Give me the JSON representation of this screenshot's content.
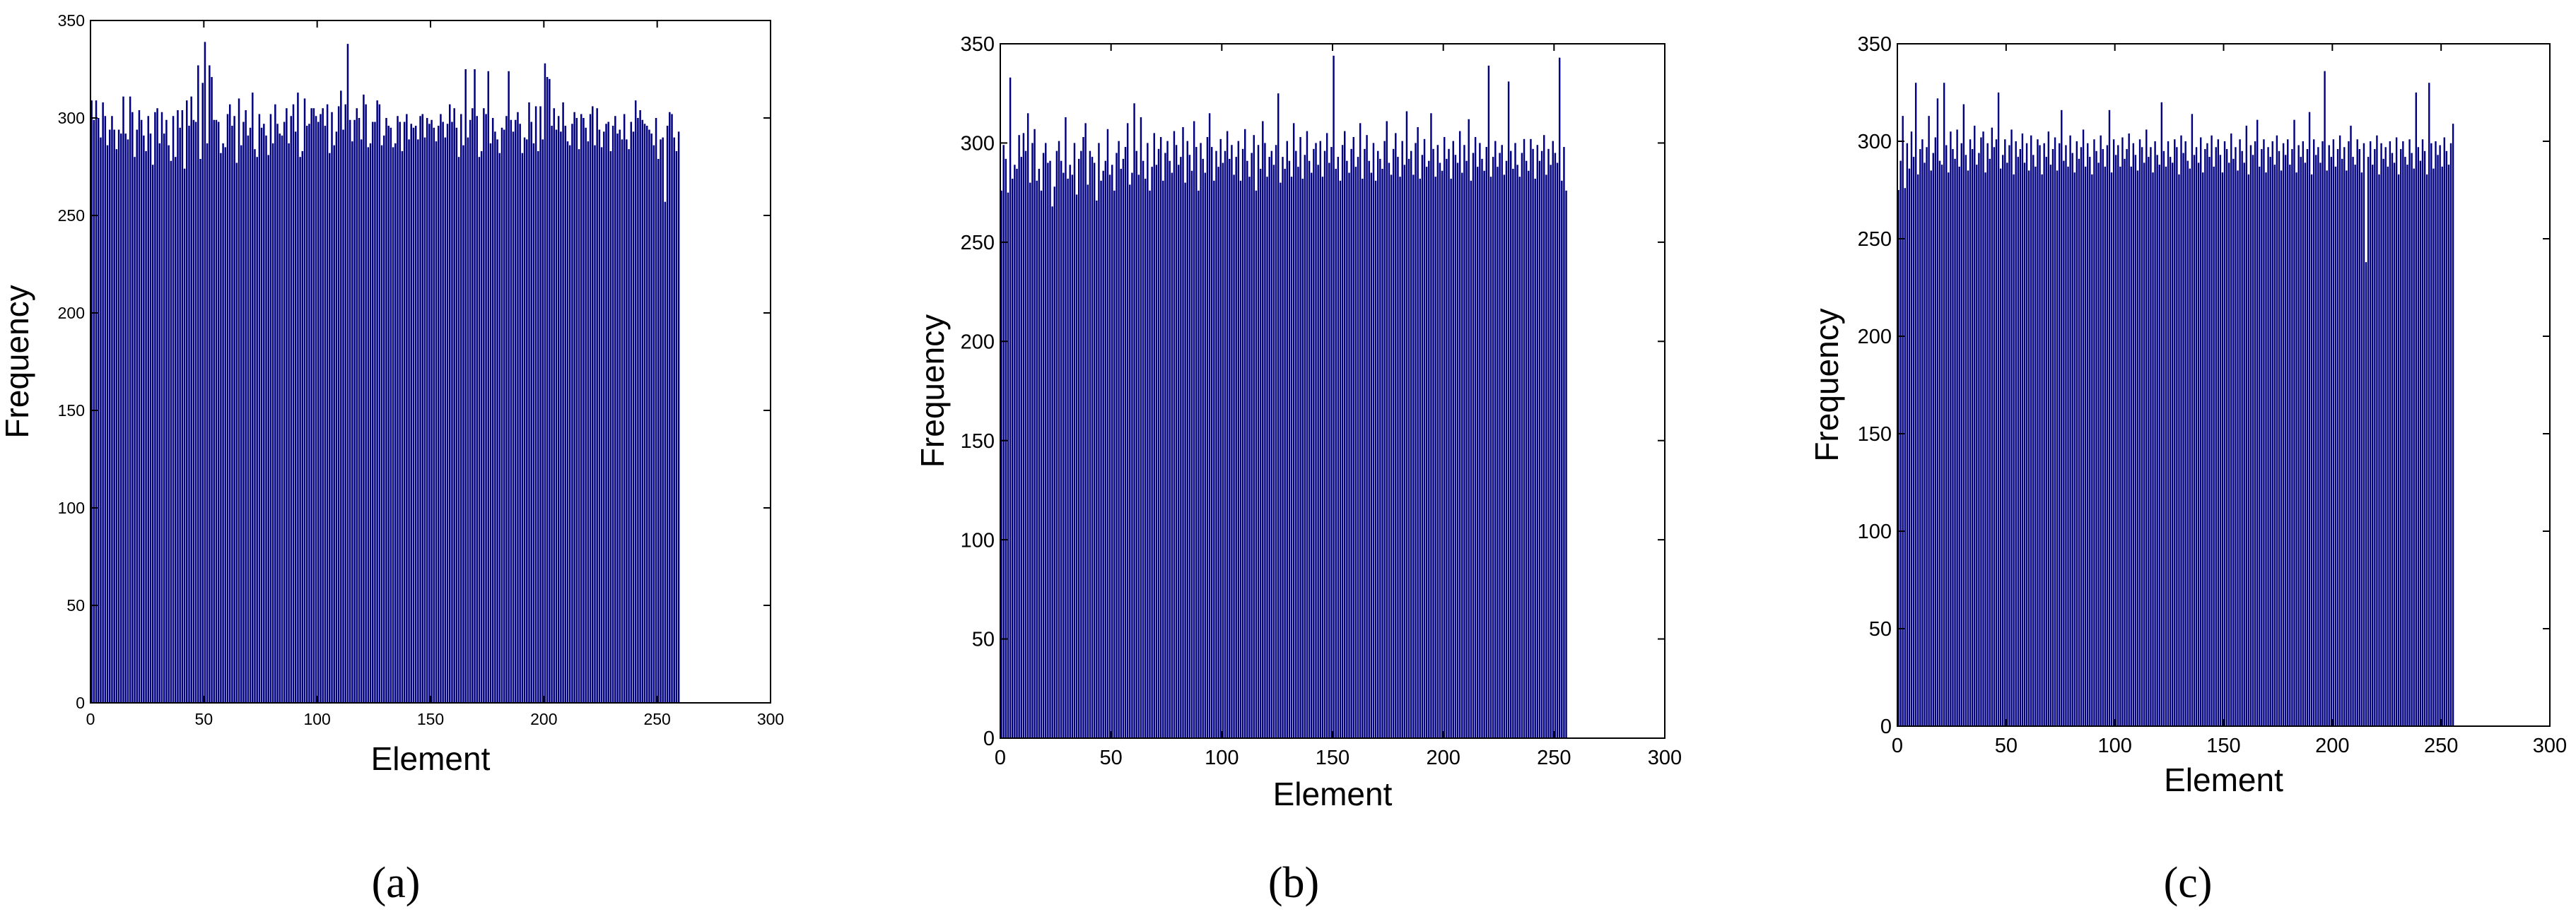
{
  "figure": {
    "panels": [
      {
        "caption": "(a)",
        "letter": "a"
      },
      {
        "caption": "(b)",
        "letter": "b"
      },
      {
        "caption": "(c)",
        "letter": "c"
      }
    ],
    "colors": {
      "bar": "#000080",
      "axis": "#000000",
      "background": "#ffffff"
    }
  },
  "chart_data": [
    {
      "type": "bar",
      "xlabel": "Element",
      "ylabel": "Frequency",
      "xlim": [
        0,
        300
      ],
      "ylim": [
        0,
        350
      ],
      "xticks": [
        0,
        50,
        100,
        150,
        200,
        250,
        300
      ],
      "yticks": [
        0,
        50,
        100,
        150,
        200,
        250,
        300,
        350
      ],
      "grid": false,
      "x_start": 0,
      "values": [
        309,
        299,
        309,
        300,
        290,
        308,
        301,
        286,
        294,
        301,
        294,
        284,
        294,
        292,
        311,
        292,
        289,
        311,
        303,
        280,
        294,
        304,
        299,
        291,
        283,
        301,
        292,
        276,
        303,
        305,
        287,
        303,
        292,
        299,
        286,
        278,
        301,
        280,
        304,
        295,
        304,
        274,
        309,
        296,
        311,
        299,
        298,
        327,
        279,
        318,
        339,
        287,
        327,
        321,
        299,
        299,
        298,
        282,
        287,
        285,
        302,
        307,
        296,
        301,
        277,
        310,
        286,
        298,
        304,
        291,
        295,
        313,
        284,
        280,
        302,
        295,
        297,
        291,
        281,
        302,
        287,
        307,
        297,
        292,
        291,
        298,
        305,
        287,
        301,
        307,
        293,
        313,
        280,
        283,
        310,
        296,
        297,
        305,
        305,
        301,
        298,
        302,
        305,
        296,
        307,
        282,
        303,
        286,
        293,
        306,
        314,
        294,
        307,
        338,
        299,
        288,
        299,
        305,
        300,
        289,
        312,
        307,
        285,
        287,
        298,
        298,
        309,
        307,
        286,
        291,
        300,
        296,
        295,
        285,
        287,
        301,
        298,
        283,
        298,
        302,
        289,
        297,
        295,
        296,
        289,
        301,
        302,
        290,
        300,
        297,
        299,
        295,
        288,
        296,
        302,
        298,
        290,
        297,
        307,
        298,
        305,
        295,
        280,
        302,
        286,
        325,
        290,
        299,
        305,
        325,
        301,
        280,
        283,
        305,
        302,
        324,
        287,
        300,
        293,
        289,
        282,
        295,
        294,
        301,
        324,
        299,
        293,
        299,
        303,
        297,
        282,
        290,
        289,
        308,
        298,
        287,
        306,
        283,
        306,
        289,
        328,
        321,
        320,
        296,
        305,
        294,
        301,
        293,
        308,
        296,
        288,
        286,
        297,
        303,
        300,
        284,
        302,
        300,
        295,
        288,
        302,
        306,
        286,
        305,
        294,
        285,
        293,
        297,
        298,
        283,
        296,
        301,
        292,
        294,
        289,
        302,
        289,
        284,
        298,
        293,
        309,
        300,
        304,
        299,
        297,
        296,
        294,
        292,
        286,
        300,
        279,
        289,
        290,
        257,
        296,
        303,
        302,
        290,
        283,
        293
      ]
    },
    {
      "type": "bar",
      "xlabel": "Element",
      "ylabel": "Frequency",
      "xlim": [
        0,
        300
      ],
      "ylim": [
        0,
        350
      ],
      "xticks": [
        0,
        50,
        100,
        150,
        200,
        250,
        300
      ],
      "yticks": [
        0,
        50,
        100,
        150,
        200,
        250,
        300,
        350
      ],
      "grid": false,
      "x_start": 0,
      "values": [
        276,
        299,
        292,
        275,
        333,
        282,
        289,
        287,
        304,
        293,
        305,
        296,
        315,
        280,
        300,
        307,
        281,
        287,
        276,
        295,
        300,
        290,
        291,
        268,
        278,
        296,
        301,
        291,
        285,
        313,
        282,
        289,
        284,
        300,
        274,
        292,
        296,
        303,
        310,
        279,
        296,
        293,
        290,
        271,
        300,
        281,
        286,
        291,
        307,
        284,
        289,
        276,
        295,
        301,
        287,
        292,
        298,
        310,
        279,
        285,
        320,
        296,
        284,
        313,
        291,
        282,
        300,
        276,
        288,
        305,
        289,
        297,
        303,
        281,
        295,
        301,
        291,
        285,
        306,
        299,
        289,
        293,
        308,
        280,
        301,
        294,
        286,
        311,
        298,
        276,
        300,
        292,
        285,
        303,
        315,
        298,
        281,
        296,
        288,
        302,
        290,
        296,
        306,
        292,
        299,
        284,
        293,
        301,
        281,
        297,
        307,
        291,
        283,
        295,
        304,
        276,
        299,
        287,
        311,
        300,
        283,
        293,
        296,
        289,
        299,
        325,
        280,
        293,
        287,
        301,
        291,
        283,
        310,
        296,
        288,
        303,
        282,
        294,
        306,
        291,
        285,
        297,
        300,
        289,
        301,
        283,
        296,
        305,
        290,
        298,
        344,
        287,
        293,
        281,
        299,
        306,
        291,
        285,
        297,
        303,
        288,
        293,
        310,
        282,
        297,
        304,
        291,
        285,
        300,
        281,
        296,
        292,
        287,
        301,
        311,
        290,
        284,
        297,
        305,
        293,
        283,
        301,
        289,
        316,
        292,
        296,
        284,
        300,
        308,
        282,
        294,
        302,
        288,
        291,
        315,
        297,
        283,
        299,
        290,
        286,
        303,
        292,
        297,
        282,
        301,
        294,
        290,
        306,
        285,
        299,
        291,
        312,
        281,
        295,
        303,
        288,
        300,
        292,
        286,
        298,
        339,
        283,
        293,
        301,
        288,
        295,
        299,
        284,
        291,
        331,
        296,
        287,
        300,
        289,
        283,
        295,
        302,
        291,
        286,
        302,
        297,
        282,
        299,
        291,
        296,
        304,
        284,
        297,
        289,
        301,
        295,
        290,
        343,
        281,
        298,
        276
      ]
    },
    {
      "type": "bar",
      "xlabel": "Element",
      "ylabel": "Frequency",
      "xlim": [
        0,
        300
      ],
      "ylim": [
        0,
        350
      ],
      "xticks": [
        0,
        50,
        100,
        150,
        200,
        250,
        300
      ],
      "yticks": [
        0,
        50,
        100,
        150,
        200,
        250,
        300,
        350
      ],
      "grid": false,
      "x_start": 0,
      "values": [
        275,
        290,
        313,
        276,
        299,
        286,
        305,
        292,
        330,
        283,
        296,
        301,
        289,
        297,
        313,
        285,
        294,
        302,
        322,
        290,
        288,
        330,
        298,
        284,
        305,
        296,
        291,
        306,
        287,
        299,
        319,
        293,
        285,
        301,
        296,
        308,
        288,
        294,
        302,
        305,
        284,
        299,
        291,
        307,
        297,
        301,
        325,
        286,
        293,
        301,
        289,
        298,
        306,
        283,
        300,
        292,
        296,
        304,
        289,
        299,
        285,
        303,
        293,
        287,
        301,
        298,
        283,
        299,
        292,
        305,
        288,
        296,
        302,
        285,
        299,
        316,
        290,
        298,
        287,
        303,
        294,
        284,
        300,
        291,
        297,
        306,
        287,
        299,
        292,
        283,
        301,
        295,
        289,
        303,
        296,
        287,
        298,
        316,
        284,
        301,
        293,
        298,
        287,
        302,
        291,
        296,
        304,
        287,
        299,
        293,
        285,
        301,
        297,
        289,
        306,
        292,
        297,
        284,
        300,
        293,
        288,
        320,
        295,
        287,
        300,
        292,
        289,
        301,
        297,
        283,
        303,
        294,
        300,
        290,
        286,
        314,
        293,
        297,
        289,
        302,
        284,
        296,
        299,
        292,
        303,
        287,
        297,
        301,
        293,
        284,
        300,
        296,
        289,
        304,
        291,
        297,
        285,
        301,
        295,
        289,
        308,
        283,
        298,
        293,
        300,
        311,
        287,
        296,
        301,
        284,
        297,
        292,
        300,
        288,
        303,
        295,
        285,
        299,
        293,
        301,
        288,
        296,
        311,
        284,
        298,
        292,
        300,
        289,
        296,
        315,
        283,
        301,
        293,
        297,
        289,
        300,
        336,
        285,
        298,
        292,
        301,
        287,
        296,
        303,
        291,
        297,
        285,
        300,
        308,
        292,
        288,
        301,
        296,
        284,
        299,
        238,
        292,
        300,
        288,
        296,
        303,
        283,
        299,
        291,
        297,
        287,
        300,
        294,
        289,
        302,
        283,
        296,
        300,
        292,
        288,
        301,
        294,
        286,
        325,
        297,
        290,
        301,
        295,
        283,
        330,
        299,
        286,
        300,
        293,
        298,
        287,
        302,
        295,
        288,
        299,
        309
      ]
    }
  ]
}
